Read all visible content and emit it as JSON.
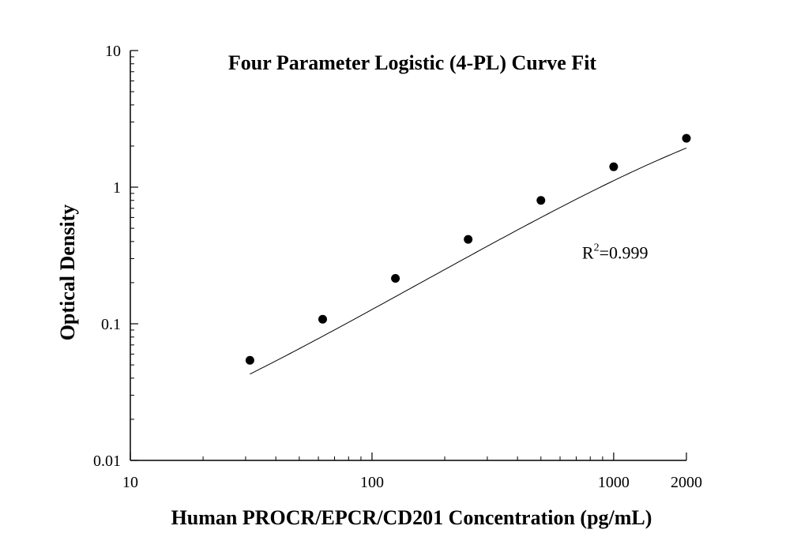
{
  "chart_data": {
    "type": "scatter",
    "title": "Four Parameter Logistic (4-PL) Curve Fit",
    "xlabel": "Human PROCR/EPCR/CD201 Concentration (pg/mL)",
    "ylabel": "Optical Density",
    "x_scale": "log",
    "y_scale": "log",
    "xlim": [
      10,
      2000
    ],
    "ylim": [
      0.01,
      10
    ],
    "x_ticks": [
      10,
      100,
      1000,
      2000
    ],
    "x_tick_labels": [
      "10",
      "100",
      "1000",
      "2000"
    ],
    "y_ticks": [
      0.01,
      0.1,
      1,
      10
    ],
    "y_tick_labels": [
      "0.01",
      "0.1",
      "1",
      "10"
    ],
    "grid": false,
    "legend": "none",
    "series": [
      {
        "x": [
          31.25,
          62.5,
          125,
          250,
          500,
          1000,
          2000
        ],
        "y": [
          0.054,
          0.108,
          0.215,
          0.415,
          0.8,
          1.41,
          2.28
        ]
      }
    ],
    "fit": {
      "model": "4PL",
      "params": {
        "a": 0.006,
        "b": 1.035,
        "c": 4600,
        "d": 6.5
      }
    },
    "annotation": {
      "base": "R",
      "sup": "2",
      "value": "=0.999",
      "x": 1000,
      "y": 0.33
    },
    "colors": {
      "marker": "#000000",
      "line": "#000000",
      "axis": "#000000"
    }
  }
}
